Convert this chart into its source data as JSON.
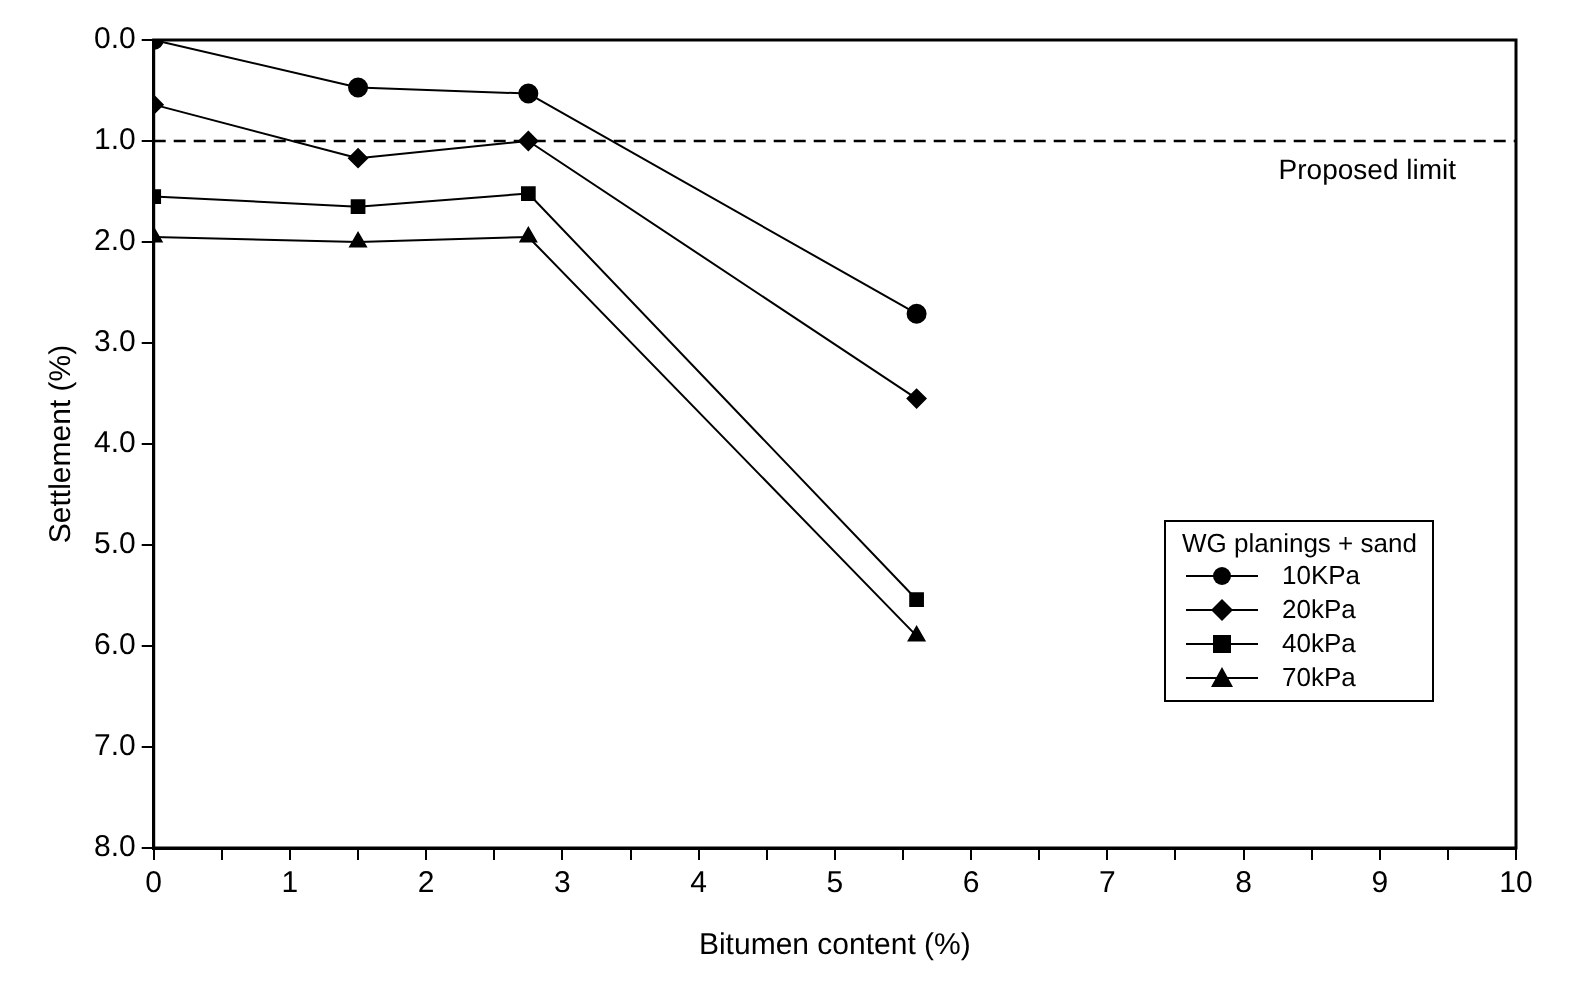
{
  "chart_data": {
    "type": "line",
    "xlabel": "Bitumen content (%)",
    "ylabel": "Settlement (%)",
    "xlim": [
      0,
      10
    ],
    "xticks": [
      0,
      {
        "value": 0.5,
        "label": null
      },
      1,
      {
        "value": 1.5,
        "label": null
      },
      2,
      {
        "value": 2.5,
        "label": null
      },
      3,
      {
        "value": 3.5,
        "label": null
      },
      4,
      {
        "value": 4.5,
        "label": null
      },
      5,
      {
        "value": 5.5,
        "label": null
      },
      6,
      {
        "value": 6.5,
        "label": null
      },
      7,
      {
        "value": 7.5,
        "label": null
      },
      8,
      {
        "value": 8.5,
        "label": null
      },
      9,
      {
        "value": 9.5,
        "label": null
      },
      10
    ],
    "ylim": [
      8,
      0
    ],
    "yticks": [
      {
        "value": 0,
        "label": "0.0"
      },
      {
        "value": 1,
        "label": "1.0"
      },
      {
        "value": 2,
        "label": "2.0"
      },
      {
        "value": 3,
        "label": "3.0"
      },
      {
        "value": 4,
        "label": "4.0"
      },
      {
        "value": 5,
        "label": "5.0"
      },
      {
        "value": 6,
        "label": "6.0"
      },
      {
        "value": 7,
        "label": "7.0"
      },
      {
        "value": 8,
        "label": "8.0"
      }
    ],
    "x": [
      0,
      1.5,
      2.75,
      5.6
    ],
    "series": [
      {
        "name": "10KPa",
        "color": "#000000",
        "marker": "circle",
        "values": [
          0,
          0.47,
          0.53,
          2.71
        ]
      },
      {
        "name": "20kPa",
        "color": "#000000",
        "marker": "diamond",
        "values": [
          0.64,
          1.17,
          1.0,
          3.55
        ]
      },
      {
        "name": "40kPa",
        "color": "#000000",
        "marker": "square",
        "values": [
          1.55,
          1.65,
          1.52,
          5.54
        ]
      },
      {
        "name": "70kPa",
        "color": "#000000",
        "marker": "triangle",
        "values": [
          1.95,
          2.0,
          1.95,
          5.9
        ]
      }
    ],
    "ref_lines": [
      {
        "axis": "y",
        "value": 1,
        "label": "Proposed limit",
        "color": "#000000",
        "line_style": "dashed"
      }
    ],
    "legend": "bottom right",
    "legend_title": "WG planings + sand",
    "grid": false,
    "line_style": "solid"
  }
}
